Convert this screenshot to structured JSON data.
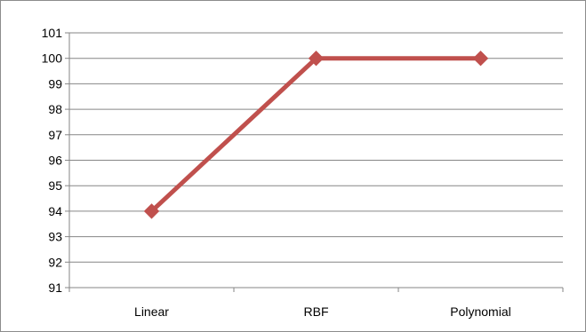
{
  "chart_data": {
    "type": "line",
    "categories": [
      "Linear",
      "RBF",
      "Polynomial"
    ],
    "series": [
      {
        "values": [
          94,
          100,
          100
        ]
      }
    ],
    "ylim": [
      91,
      101
    ],
    "yticks": [
      "91",
      "92",
      "93",
      "94",
      "95",
      "96",
      "97",
      "98",
      "99",
      "100",
      "101"
    ],
    "grid": true,
    "legend": "none",
    "colors": {
      "line": "#C0504D",
      "marker": "#C0504D",
      "grid": "#868686",
      "axis": "#868686"
    },
    "marker": "diamond"
  }
}
